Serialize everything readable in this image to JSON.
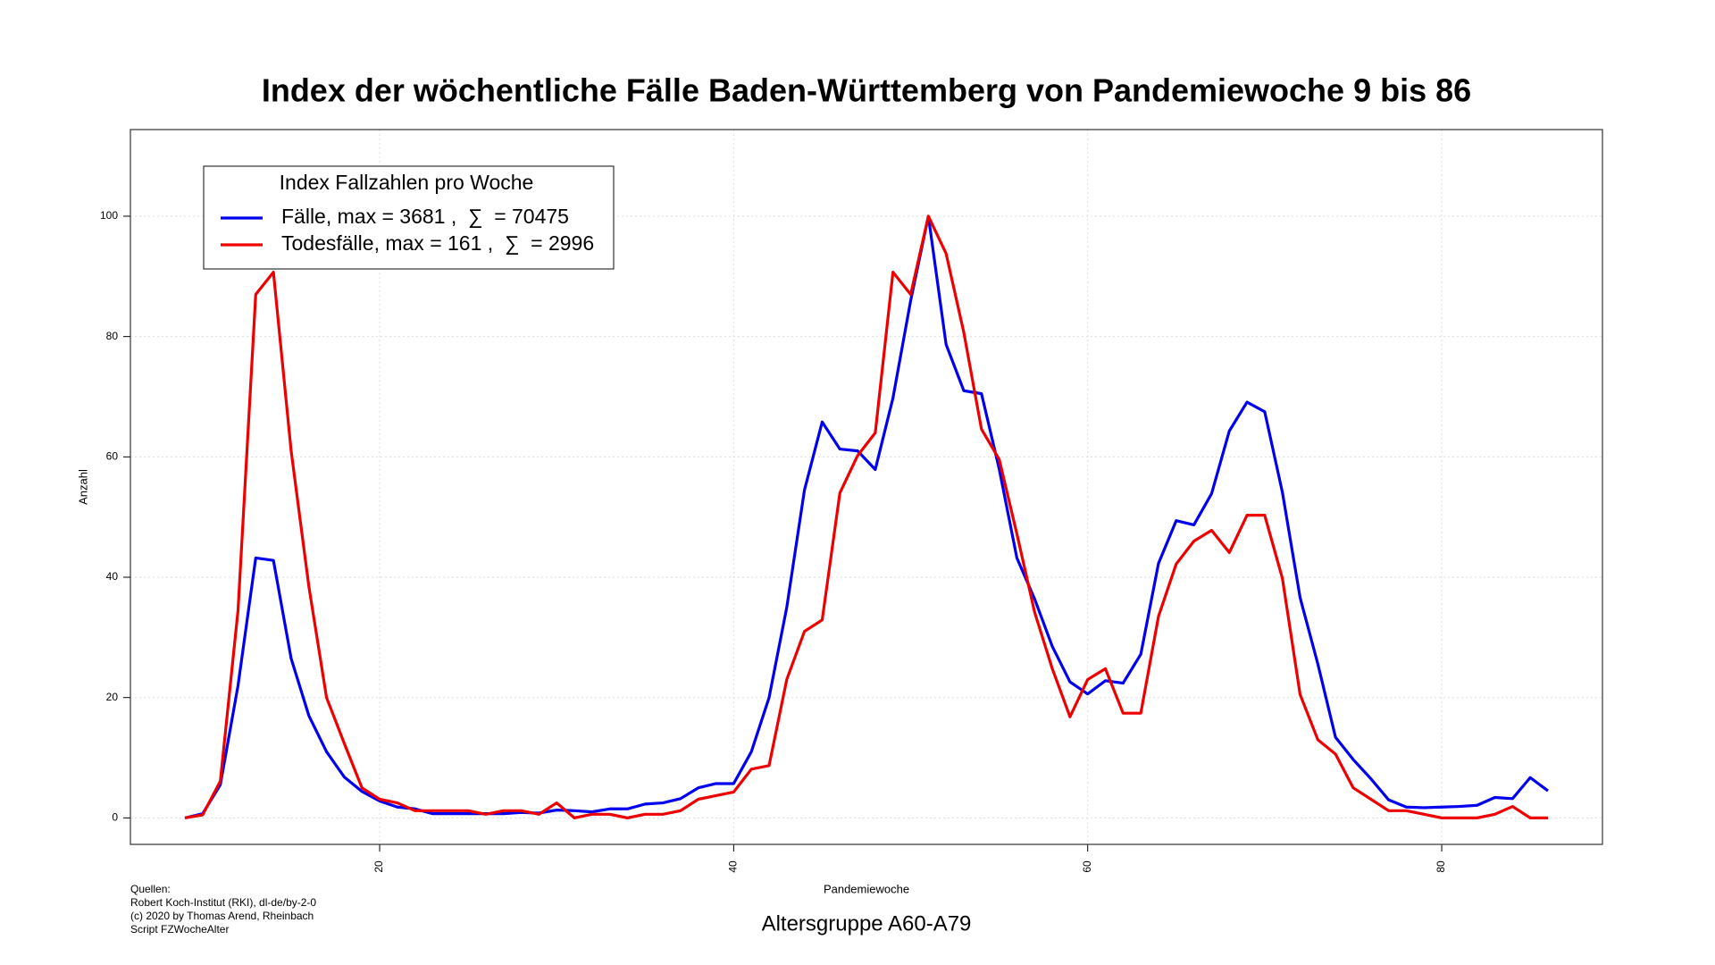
{
  "chart_data": {
    "type": "line",
    "title": "Index der wöchentliche Fälle Baden-Württemberg von Pandemiewoche 9 bis 86",
    "subtitle": "Altersgruppe A60-A79",
    "x_label": "Pandemiewoche",
    "y_label": "Anzahl",
    "legend_title": "Index Fallzahlen pro Woche",
    "sources": [
      "Quellen:",
      "Robert Koch-Institut (RKI), dl-de/by-2-0",
      "(c) 2020 by Thomas Arend, Rheinbach",
      "Script FZWocheAlter"
    ],
    "x": [
      9,
      10,
      11,
      12,
      13,
      14,
      15,
      16,
      17,
      18,
      19,
      20,
      21,
      22,
      23,
      24,
      25,
      26,
      27,
      28,
      29,
      30,
      31,
      32,
      33,
      34,
      35,
      36,
      37,
      38,
      39,
      40,
      41,
      42,
      43,
      44,
      45,
      46,
      47,
      48,
      49,
      50,
      51,
      52,
      53,
      54,
      55,
      56,
      57,
      58,
      59,
      60,
      61,
      62,
      63,
      64,
      65,
      66,
      67,
      68,
      69,
      70,
      71,
      72,
      73,
      74,
      75,
      76,
      77,
      78,
      79,
      80,
      81,
      82,
      83,
      84,
      85,
      86
    ],
    "series": [
      {
        "name": "Fälle, max = 3681 ,  ∑  = 70475",
        "color": "#0000ee",
        "values": [
          0,
          0.7,
          5.5,
          22,
          43.2,
          42.8,
          26.5,
          17,
          11,
          6.8,
          4.4,
          2.8,
          1.8,
          1.5,
          0.7,
          0.7,
          0.7,
          0.7,
          0.7,
          0.9,
          0.8,
          1.3,
          1.2,
          1.0,
          1.5,
          1.5,
          2.3,
          2.5,
          3.2,
          5.0,
          5.7,
          5.7,
          11,
          20,
          35,
          54.5,
          65.8,
          61.3,
          61,
          57.9,
          69.8,
          86,
          100,
          78.7,
          71,
          70.5,
          58,
          43.2,
          36.4,
          28.5,
          22.6,
          20.6,
          22.8,
          22.4,
          27.2,
          42.3,
          49.4,
          48.7,
          53.9,
          64.3,
          69.1,
          67.5,
          54.1,
          36.6,
          25.6,
          13.4,
          9.7,
          6.5,
          3,
          1.8,
          1.7,
          1.8,
          1.9,
          2.1,
          3.4,
          3.2,
          6.7,
          4.5
        ]
      },
      {
        "name": "Todesfälle, max = 161 ,  ∑  = 2996",
        "color": "#ee0000",
        "values": [
          0,
          0.5,
          6.1,
          34.5,
          87,
          90.7,
          61,
          38.5,
          20,
          12.4,
          5,
          3.1,
          2.5,
          1.2,
          1.2,
          1.2,
          1.2,
          0.6,
          1.2,
          1.2,
          0.6,
          2.5,
          0,
          0.6,
          0.6,
          0,
          0.6,
          0.6,
          1.2,
          3.1,
          3.7,
          4.3,
          8.1,
          8.7,
          23,
          31,
          32.9,
          54,
          60.2,
          64,
          90.7,
          87,
          100,
          93.8,
          80.7,
          64.6,
          59.6,
          47.2,
          34.2,
          24.8,
          16.8,
          23,
          24.8,
          17.4,
          17.4,
          33.5,
          42.2,
          46,
          47.8,
          44.1,
          50.3,
          50.3,
          39.8,
          20.5,
          13,
          10.6,
          5,
          3.1,
          1.2,
          1.2,
          0.6,
          0,
          0,
          0,
          0.6,
          1.9,
          0,
          0
        ]
      }
    ],
    "xlim": [
      5.92,
      89.08
    ],
    "ylim": [
      -4.4,
      114.4
    ],
    "xticks": [
      20,
      40,
      60,
      80
    ],
    "yticks": [
      0,
      20,
      40,
      60,
      80,
      100
    ],
    "grid": true,
    "legend_position": "top-left"
  }
}
